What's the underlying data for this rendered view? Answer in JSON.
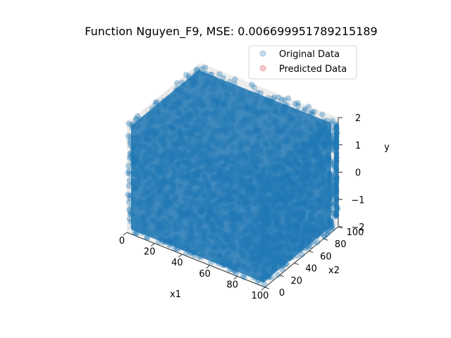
{
  "chart_data": {
    "type": "scatter",
    "projection": "3d",
    "title": "Function Nguyen_F9, MSE: 0.006699951789215189",
    "xlabel": "x1",
    "ylabel": "x2",
    "zlabel": "y",
    "xlim": [
      0,
      100
    ],
    "ylim": [
      0,
      100
    ],
    "zlim": [
      -2,
      2
    ],
    "xticks": [
      "0",
      "20",
      "40",
      "60",
      "80",
      "100"
    ],
    "yticks": [
      "0",
      "20",
      "40",
      "60",
      "80",
      "100"
    ],
    "zticks": [
      "−2",
      "−1",
      "0",
      "1",
      "2"
    ],
    "grid": true,
    "legend_position": "upper-right",
    "series": [
      {
        "name": "Original Data",
        "color": "#1f77b4",
        "marker": "circle",
        "alpha": 0.2,
        "x_range": [
          0,
          100
        ],
        "y_range": [
          0,
          100
        ],
        "z_range": [
          -2,
          2
        ]
      },
      {
        "name": "Predicted Data",
        "color": "#d62728",
        "marker": "circle",
        "alpha": 0.2,
        "x_range": [
          0,
          100
        ],
        "y_range": [
          0,
          100
        ],
        "z_range": [
          -2,
          2
        ]
      }
    ]
  }
}
